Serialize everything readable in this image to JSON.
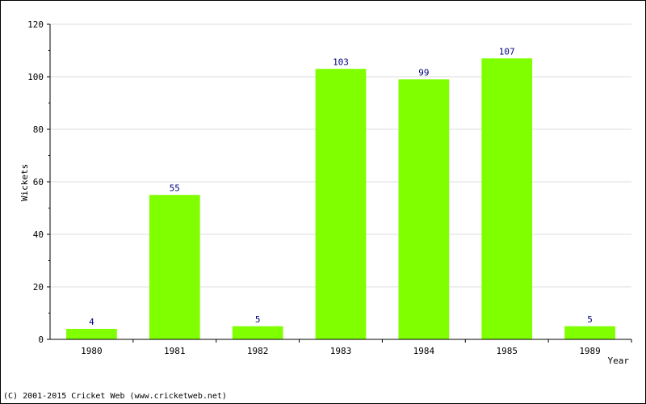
{
  "chart_data": {
    "type": "bar",
    "categories": [
      "1980",
      "1981",
      "1982",
      "1983",
      "1984",
      "1985",
      "1989"
    ],
    "values": [
      4,
      55,
      5,
      103,
      99,
      107,
      5
    ],
    "title": "",
    "xlabel": "Year",
    "ylabel": "Wickets",
    "ylim": [
      0,
      120
    ],
    "yticks": [
      0,
      20,
      40,
      60,
      80,
      100,
      120
    ],
    "grid": true,
    "legend": "none",
    "bar_color": "#80ff00",
    "data_label_color": "#000080",
    "grid_color": "#dddddd"
  },
  "footer": "(C) 2001-2015 Cricket Web (www.cricketweb.net)"
}
